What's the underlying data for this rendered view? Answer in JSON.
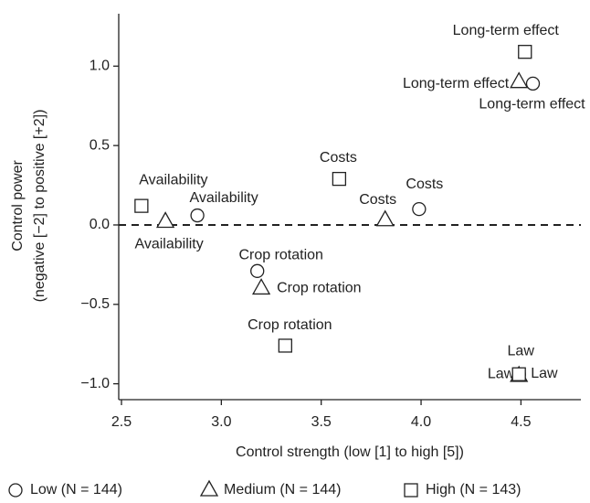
{
  "chart_data": {
    "type": "scatter",
    "xlabel": "Control strength (low [1] to high [5])",
    "ylabel": [
      "Control power",
      "(negative [−2] to positive [+2])"
    ],
    "xlim": [
      2.5,
      4.8
    ],
    "ylim": [
      -1.1,
      1.33
    ],
    "xticks": [
      2.5,
      {
        "value": 3.0,
        "label": "3.0"
      },
      3.5,
      {
        "value": 4.0,
        "label": "4.0"
      },
      4.5
    ],
    "yticks": [
      {
        "value": -1.0,
        "label": "−1.0"
      },
      {
        "value": -0.5,
        "label": "−0.5"
      },
      {
        "value": 0.0,
        "label": "0.0"
      },
      0.5,
      {
        "value": 1.0,
        "label": "1.0"
      }
    ],
    "reference_line": 0,
    "series": [
      {
        "name": "Low (N = 144)",
        "marker": "circle",
        "color": "#222222",
        "labels": [
          "Availability",
          "Crop rotation",
          "Costs",
          "Long-term effect",
          "Law"
        ],
        "x": [
          2.88,
          3.18,
          3.99,
          4.56,
          4.49
        ],
        "values": [
          0.06,
          -0.29,
          0.1,
          0.89,
          -0.94
        ]
      },
      {
        "name": "Medium (N = 144)",
        "marker": "triangle",
        "color": "#222222",
        "labels": [
          "Availability",
          "Crop rotation",
          "Costs",
          "Long-term effect",
          "Law"
        ],
        "x": [
          2.72,
          3.2,
          3.82,
          4.49,
          4.49
        ],
        "values": [
          0.02,
          -0.4,
          0.03,
          0.9,
          -0.95
        ]
      },
      {
        "name": "High (N = 143)",
        "marker": "square",
        "color": "#222222",
        "labels": [
          "Availability",
          "Crop rotation",
          "Costs",
          "Long-term effect",
          "Law"
        ],
        "x": [
          2.6,
          3.32,
          3.59,
          4.52,
          4.49
        ],
        "values": [
          0.12,
          -0.76,
          0.29,
          1.09,
          -0.94
        ]
      }
    ]
  }
}
